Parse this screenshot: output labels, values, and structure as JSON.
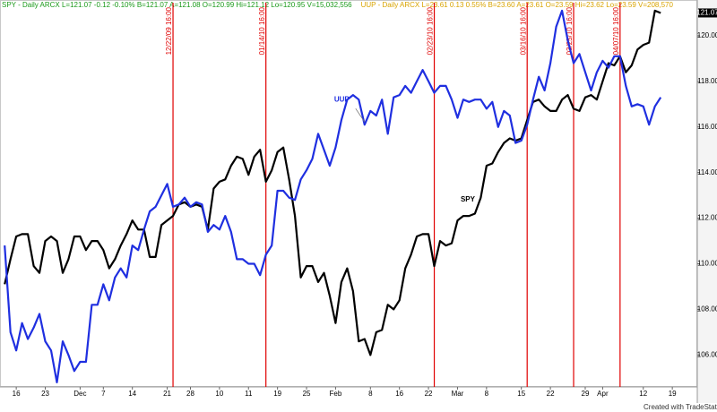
{
  "chart_data": {
    "type": "line",
    "header": [
      "SPY - Daily ARCX  L=121.07 -0.12 -0.10% B=121.07 A=121.08 O=120.99 Hi=121.12 Lo=120.95 V=15,032,556",
      "UUP - Daily ARCX  L=23.61 0.13 0.55% B=23.60 A=23.61 O=23.59 Hi=23.62 Lo=23.59 V=208,570"
    ],
    "header_colors": [
      "#1a9a1a",
      "#d9a400"
    ],
    "last_price_label": "121.07",
    "footer": "Created with TradeStation",
    "series": [
      {
        "name": "SPY",
        "color": "#000000",
        "values": [
          109.1,
          110.2,
          111.2,
          111.3,
          111.3,
          109.9,
          109.6,
          111.0,
          111.2,
          111.0,
          109.6,
          110.2,
          111.2,
          111.2,
          110.6,
          111.0,
          111.0,
          110.6,
          109.8,
          110.2,
          110.8,
          111.3,
          111.9,
          111.5,
          111.5,
          110.3,
          110.3,
          111.7,
          111.9,
          112.1,
          112.6,
          112.7,
          112.5,
          112.6,
          112.5,
          111.5,
          113.3,
          113.6,
          113.7,
          114.3,
          114.7,
          114.6,
          113.9,
          114.7,
          115.0,
          113.6,
          114.1,
          114.9,
          115.1,
          113.7,
          112.1,
          109.4,
          109.9,
          109.9,
          109.2,
          109.6,
          108.6,
          107.4,
          109.2,
          109.8,
          108.8,
          106.6,
          106.7,
          106.0,
          107.0,
          107.1,
          108.2,
          108.0,
          108.4,
          109.8,
          110.4,
          111.2,
          111.3,
          111.3,
          109.9,
          111.0,
          110.8,
          110.9,
          111.9,
          112.1,
          112.1,
          112.2,
          112.9,
          114.3,
          114.4,
          114.9,
          115.3,
          115.5,
          115.4,
          115.5,
          116.3,
          117.1,
          117.2,
          116.9,
          116.7,
          116.7,
          117.2,
          117.4,
          116.8,
          116.7,
          117.3,
          117.4,
          117.2,
          118.0,
          118.8,
          118.7,
          119.1,
          118.4,
          118.7,
          119.4,
          119.6,
          119.7,
          121.1,
          121.0
        ]
      },
      {
        "name": "UUP",
        "color": "#1f2fe0",
        "values": [
          110.8,
          107.0,
          106.2,
          107.4,
          106.7,
          107.2,
          107.8,
          106.6,
          106.2,
          104.8,
          106.6,
          106.0,
          105.3,
          105.7,
          105.7,
          108.2,
          108.2,
          109.1,
          108.4,
          109.4,
          109.8,
          109.4,
          110.8,
          110.6,
          111.5,
          112.3,
          112.5,
          113.0,
          113.5,
          112.5,
          112.6,
          112.9,
          112.5,
          112.7,
          112.6,
          111.4,
          111.7,
          111.5,
          112.1,
          111.4,
          110.2,
          110.2,
          110.0,
          110.0,
          109.5,
          110.4,
          110.8,
          113.2,
          113.2,
          112.9,
          112.8,
          113.7,
          114.1,
          114.6,
          115.7,
          115.0,
          114.3,
          115.1,
          116.3,
          117.2,
          117.4,
          117.2,
          116.1,
          116.7,
          116.5,
          117.2,
          115.7,
          117.3,
          117.4,
          117.8,
          117.5,
          118.0,
          118.5,
          118.0,
          117.5,
          117.8,
          117.8,
          117.2,
          116.4,
          117.2,
          117.1,
          117.2,
          117.2,
          116.8,
          117.1,
          116.0,
          116.7,
          116.5,
          115.3,
          115.4,
          116.1,
          117.2,
          118.2,
          117.6,
          118.8,
          120.4,
          121.1,
          119.8,
          118.8,
          119.2,
          118.4,
          117.6,
          118.4,
          118.9,
          118.6,
          119.1,
          119.1,
          117.8,
          116.9,
          117.0,
          116.9,
          116.1,
          116.9,
          117.3
        ]
      }
    ],
    "annotations": [
      {
        "text": "UUP",
        "series": 1,
        "x": 62
      },
      {
        "text": "SPY",
        "series": 0,
        "x": 79
      }
    ],
    "vlines": [
      {
        "x": 29,
        "label": "12/22/09 16:00"
      },
      {
        "x": 45,
        "label": "01/14/10 16:00"
      },
      {
        "x": 74,
        "label": "02/23/10 16:00"
      },
      {
        "x": 90,
        "label": "03/16/10 16:00"
      },
      {
        "x": 98,
        "label": "03/25/10 16:00"
      },
      {
        "x": 106,
        "label": "04/07/10 16:00"
      }
    ],
    "vline_color": "#e00000",
    "xlim": [
      -0.8,
      119.3
    ],
    "xticks": [
      {
        "value": 2,
        "label": "16"
      },
      {
        "value": 7,
        "label": "23"
      },
      {
        "value": 13,
        "label": "Dec"
      },
      {
        "value": 17,
        "label": "7"
      },
      {
        "value": 22,
        "label": "14"
      },
      {
        "value": 28,
        "label": "21"
      },
      {
        "value": 32,
        "label": "28"
      },
      {
        "value": 37,
        "label": "10"
      },
      {
        "value": 42,
        "label": "11"
      },
      {
        "value": 47,
        "label": "19"
      },
      {
        "value": 52,
        "label": "25"
      },
      {
        "value": 57,
        "label": "Feb"
      },
      {
        "value": 63,
        "label": "8"
      },
      {
        "value": 68,
        "label": "16"
      },
      {
        "value": 73,
        "label": "22"
      },
      {
        "value": 78,
        "label": "Mar"
      },
      {
        "value": 83,
        "label": "8"
      },
      {
        "value": 89,
        "label": "15"
      },
      {
        "value": 94,
        "label": "22"
      },
      {
        "value": 100,
        "label": "29"
      },
      {
        "value": 103,
        "label": "Apr"
      },
      {
        "value": 110,
        "label": "12"
      },
      {
        "value": 115,
        "label": "19"
      }
    ],
    "ylim": [
      104.6,
      121.45
    ],
    "yticks": [
      {
        "value": 106,
        "label": "106.00"
      },
      {
        "value": 108,
        "label": "108.00"
      },
      {
        "value": 110,
        "label": "110.00"
      },
      {
        "value": 112,
        "label": "112.00"
      },
      {
        "value": 114,
        "label": "114.00"
      },
      {
        "value": 116,
        "label": "116.00"
      },
      {
        "value": 118,
        "label": "118.00"
      },
      {
        "value": 120,
        "label": "120.00"
      }
    ],
    "grid": false
  }
}
